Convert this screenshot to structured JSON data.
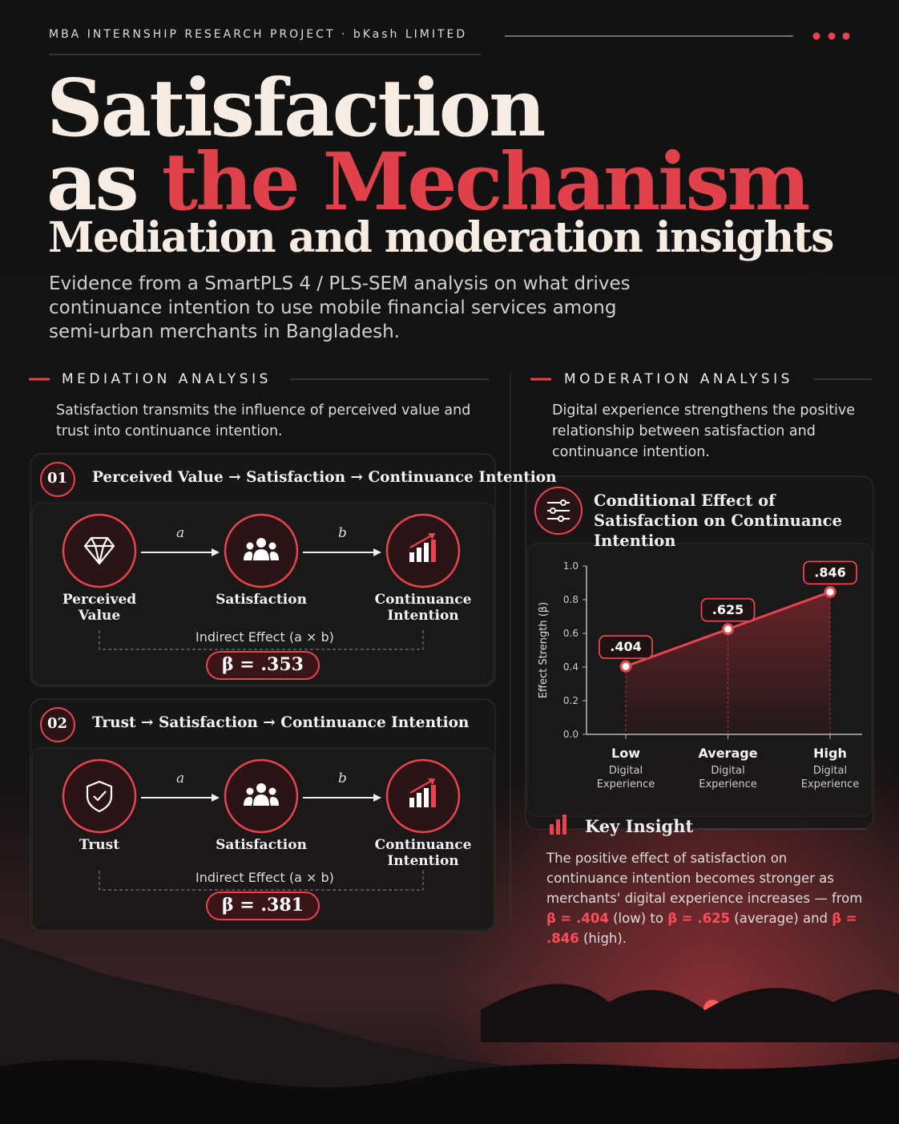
{
  "header": {
    "kicker": "MBA INTERNSHIP RESEARCH PROJECT · bKash LIMITED",
    "title_line1": "Satisfaction",
    "title_line2_plain": "as",
    "title_line2_accent": "the Mechanism",
    "subtitle": "Mediation and moderation insights",
    "intro": "Evidence from a SmartPLS 4 / PLS-SEM analysis on what drives continuance intention to use mobile financial services among semi-urban merchants in Bangladesh."
  },
  "mediation": {
    "heading": "MEDIATION ANALYSIS",
    "description": "Satisfaction transmits the influence of perceived value and trust into continuance intention.",
    "paths": [
      {
        "number": "01",
        "title": "Perceived Value → Satisfaction → Continuance Intention",
        "nodes": [
          "Perceived Value",
          "Satisfaction",
          "Continuance Intention"
        ],
        "arrow_labels": [
          "a",
          "b"
        ],
        "effect_label": "Indirect Effect (a × b)",
        "beta_label": "β = .353"
      },
      {
        "number": "02",
        "title": "Trust → Satisfaction → Continuance Intention",
        "nodes": [
          "Trust",
          "Satisfaction",
          "Continuance Intention"
        ],
        "arrow_labels": [
          "a",
          "b"
        ],
        "effect_label": "Indirect Effect (a × b)",
        "beta_label": "β = .381"
      }
    ]
  },
  "moderation": {
    "heading": "MODERATION ANALYSIS",
    "description": "Digital experience strengthens the positive relationship between satisfaction and continuance intention.",
    "chart_title": "Conditional Effect of Satisfaction on Continuance Intention",
    "chart": {
      "type": "line",
      "ylabel": "Effect Strength (β)",
      "categories": [
        "Low",
        "Average",
        "High"
      ],
      "category_sublabels": [
        "Digital Experience",
        "Digital Experience",
        "Digital Experience"
      ],
      "values": [
        0.404,
        0.625,
        0.846
      ],
      "value_labels": [
        ".404",
        ".625",
        ".846"
      ],
      "ylim": [
        0,
        1
      ],
      "yticks": [
        {
          "value": 0,
          "label": "0.0"
        },
        {
          "value": 0.2,
          "label": "0.2"
        },
        {
          "value": 0.4,
          "label": "0.4"
        },
        {
          "value": 0.6,
          "label": "0.6"
        },
        {
          "value": 0.8,
          "label": "0.8"
        },
        {
          "value": 1,
          "label": "1.0"
        }
      ],
      "color": "#e8444f"
    },
    "insight": {
      "title": "Key Insight",
      "text_parts": [
        "The positive effect of satisfaction on continuance intention becomes stronger as merchants' digital experience increases — from ",
        "β = .404",
        " (low) to ",
        "β = .625",
        " (average) and ",
        "β = .846",
        " (high)."
      ]
    }
  }
}
